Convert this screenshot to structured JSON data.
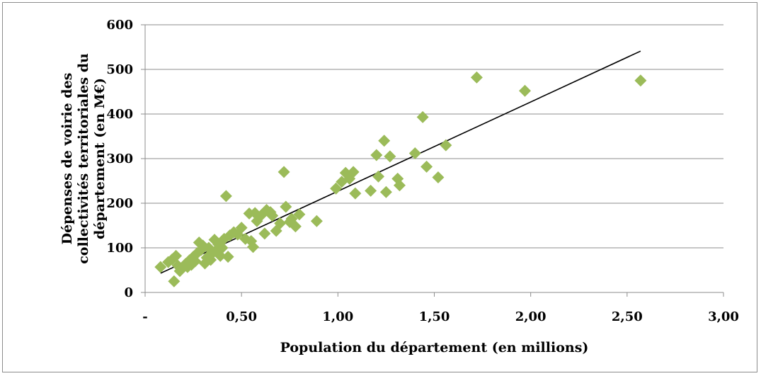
{
  "chart_data": {
    "type": "scatter",
    "title": "",
    "xlabel": "Population du département  (en millions)",
    "ylabel_lines": [
      "Dépenses de voirie des",
      "collectivités territoriales du",
      "département (en M€)"
    ],
    "xlim": [
      0,
      3
    ],
    "ylim": [
      0,
      600
    ],
    "x_ticks": [
      0,
      0.5,
      1.0,
      1.5,
      2.0,
      2.5,
      3.0
    ],
    "x_tick_labels": [
      "-",
      "0,50",
      "1,00",
      "1,50",
      "2,00",
      "2,50",
      "3,00"
    ],
    "y_ticks": [
      0,
      100,
      200,
      300,
      400,
      500,
      600
    ],
    "y_tick_labels": [
      "0",
      "100",
      "200",
      "300",
      "400",
      "500",
      "600"
    ],
    "grid": "horizontal",
    "marker": "diamond",
    "marker_color": "#9bbb59",
    "trendline_color": "#000000",
    "series": [
      {
        "points": [
          [
            0.08,
            57
          ],
          [
            0.12,
            68
          ],
          [
            0.14,
            74
          ],
          [
            0.15,
            25
          ],
          [
            0.16,
            82
          ],
          [
            0.17,
            60
          ],
          [
            0.18,
            48
          ],
          [
            0.19,
            55
          ],
          [
            0.21,
            64
          ],
          [
            0.22,
            57
          ],
          [
            0.23,
            72
          ],
          [
            0.24,
            62
          ],
          [
            0.25,
            80
          ],
          [
            0.26,
            70
          ],
          [
            0.27,
            88
          ],
          [
            0.28,
            112
          ],
          [
            0.29,
            95
          ],
          [
            0.3,
            105
          ],
          [
            0.31,
            65
          ],
          [
            0.32,
            78
          ],
          [
            0.33,
            100
          ],
          [
            0.34,
            73
          ],
          [
            0.35,
            88
          ],
          [
            0.36,
            118
          ],
          [
            0.37,
            95
          ],
          [
            0.38,
            108
          ],
          [
            0.39,
            82
          ],
          [
            0.4,
            100
          ],
          [
            0.41,
            120
          ],
          [
            0.42,
            216
          ],
          [
            0.43,
            80
          ],
          [
            0.44,
            128
          ],
          [
            0.46,
            135
          ],
          [
            0.48,
            130
          ],
          [
            0.5,
            145
          ],
          [
            0.52,
            120
          ],
          [
            0.54,
            177
          ],
          [
            0.55,
            115
          ],
          [
            0.56,
            102
          ],
          [
            0.57,
            178
          ],
          [
            0.58,
            160
          ],
          [
            0.6,
            172
          ],
          [
            0.62,
            132
          ],
          [
            0.63,
            185
          ],
          [
            0.65,
            180
          ],
          [
            0.66,
            172
          ],
          [
            0.68,
            138
          ],
          [
            0.7,
            155
          ],
          [
            0.72,
            270
          ],
          [
            0.73,
            192
          ],
          [
            0.75,
            158
          ],
          [
            0.76,
            165
          ],
          [
            0.78,
            148
          ],
          [
            0.8,
            175
          ],
          [
            0.89,
            160
          ],
          [
            0.99,
            233
          ],
          [
            1.02,
            248
          ],
          [
            1.04,
            268
          ],
          [
            1.06,
            255
          ],
          [
            1.08,
            270
          ],
          [
            1.09,
            222
          ],
          [
            1.17,
            228
          ],
          [
            1.2,
            308
          ],
          [
            1.21,
            260
          ],
          [
            1.24,
            340
          ],
          [
            1.25,
            225
          ],
          [
            1.27,
            305
          ],
          [
            1.31,
            255
          ],
          [
            1.32,
            240
          ],
          [
            1.4,
            312
          ],
          [
            1.44,
            393
          ],
          [
            1.46,
            282
          ],
          [
            1.52,
            258
          ],
          [
            1.56,
            330
          ],
          [
            1.72,
            482
          ],
          [
            1.97,
            452
          ],
          [
            2.57,
            475
          ]
        ]
      }
    ],
    "trendline": {
      "x": [
        0.08,
        2.57
      ],
      "y": [
        43,
        541
      ]
    }
  }
}
